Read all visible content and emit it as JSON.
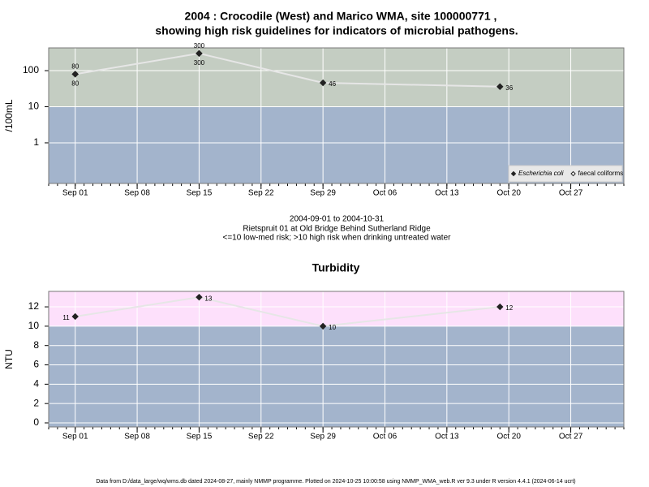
{
  "chart_data": [
    {
      "type": "line",
      "title": "2004 : Crocodile (West) and Marico WMA, site 100000771 ,",
      "subtitle": "showing high risk guidelines for indicators of microbial pathogens.",
      "ylabel": "/100mL",
      "log_y": true,
      "grid": true,
      "legend": "lower right",
      "x": [
        "Sep 01",
        "Sep 15",
        "Sep 29",
        "Oct 19"
      ],
      "series": [
        {
          "name": "Escherichia coli",
          "color": "#222222",
          "marker": "filled-diamond",
          "values": [
            80,
            300,
            46,
            36
          ]
        },
        {
          "name": "faecal coliforms",
          "color": "#222222",
          "marker": "open-diamond",
          "values": [
            80,
            300,
            null,
            null
          ]
        }
      ],
      "xlim": [
        "Aug 29",
        "Nov 02"
      ],
      "xticks": [
        "Sep 01",
        "Sep 08",
        "Sep 15",
        "Sep 22",
        "Sep 29",
        "Oct 06",
        "Oct 13",
        "Oct 20",
        "Oct 27"
      ],
      "ylim": [
        0.075,
        427
      ],
      "yticks": [
        1,
        10,
        100
      ],
      "bands": [
        {
          "min": 10,
          "color": "#c4cdc2"
        },
        {
          "max": 10,
          "color": "#a3b4cc"
        }
      ],
      "notes": [
        "2004-09-01 to 2004-10-31",
        "Rietspruit 01 at Old Bridge Behind Sutherland Ridge",
        "<=10 low-med risk; >10 high risk when drinking untreated water"
      ]
    },
    {
      "type": "line",
      "title": "Turbidity",
      "ylabel": "NTU",
      "log_y": false,
      "grid": true,
      "x": [
        "Sep 01",
        "Sep 15",
        "Sep 29",
        "Oct 19"
      ],
      "series": [
        {
          "color": "#222222",
          "marker": "filled-diamond",
          "values": [
            11,
            13,
            10,
            12
          ]
        }
      ],
      "xlim": [
        "Aug 29",
        "Nov 02"
      ],
      "xticks": [
        "Sep 01",
        "Sep 08",
        "Sep 15",
        "Sep 22",
        "Sep 29",
        "Oct 06",
        "Oct 13",
        "Oct 20",
        "Oct 27"
      ],
      "ylim": [
        -0.42,
        13.6
      ],
      "yticks": [
        0,
        2,
        4,
        6,
        8,
        10,
        12
      ],
      "bands": [
        {
          "min": 10,
          "color": "#fde0fb"
        },
        {
          "max": 10,
          "color": "#a3b4cc"
        }
      ]
    }
  ],
  "footer": "Data from D:/data_large/wq/wms.db dated 2024-08-27, mainly NMMP programme. Plotted on 2024-10-25 10:00:58 using NMMP_WMA_web.R ver 9.3 under R version 4.4.1 (2024-06-14 ucrt)"
}
